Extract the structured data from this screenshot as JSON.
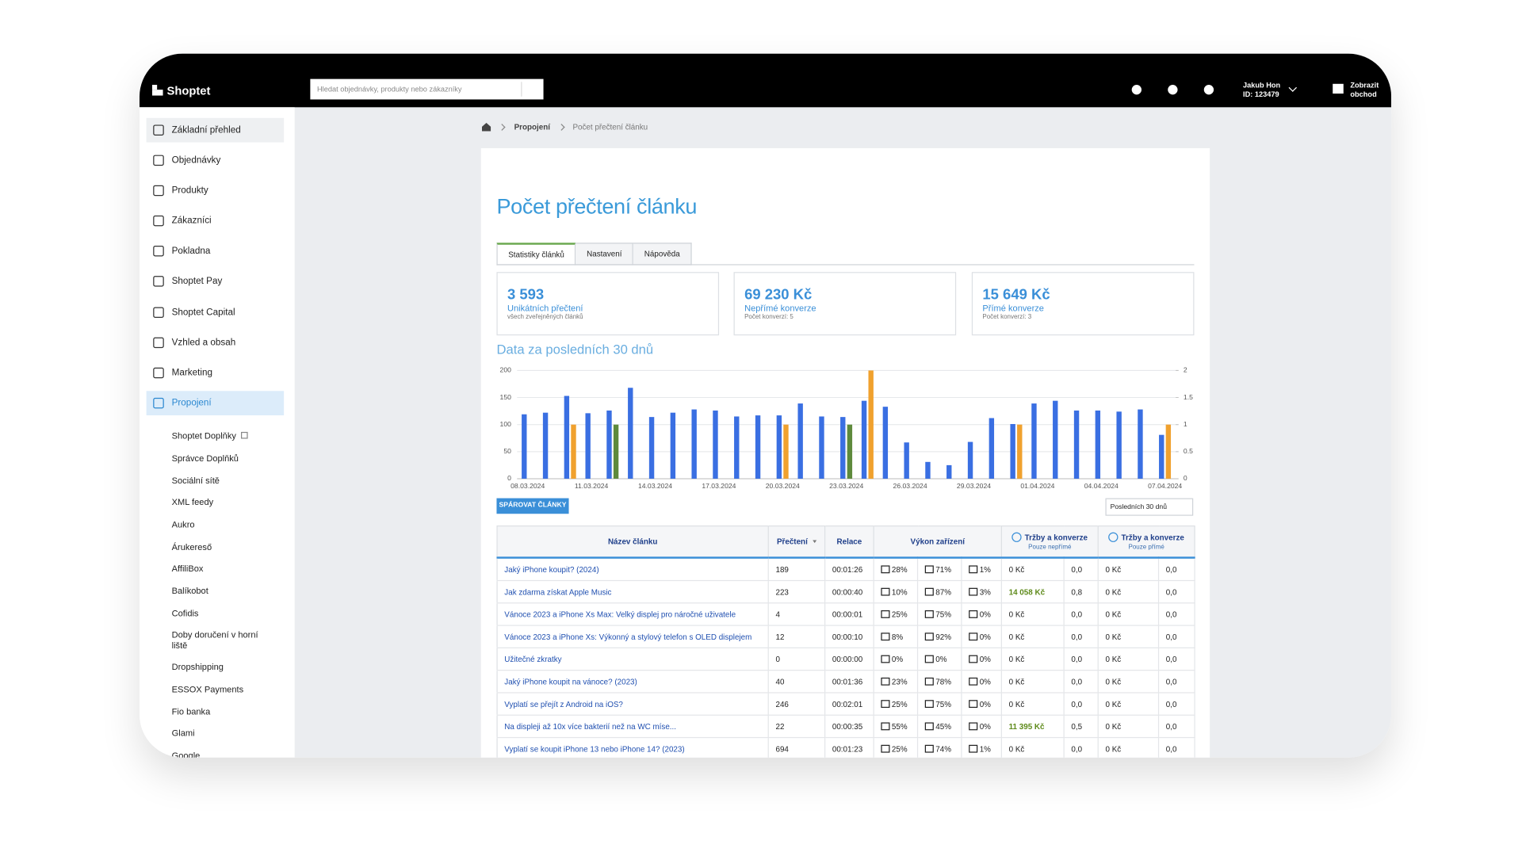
{
  "topbar": {
    "logo": "Shoptet",
    "search_placeholder": "Hledat objednávky, produkty nebo zákazníky",
    "user_name": "Jakub Hon",
    "user_id": "ID: 123479",
    "store_link": "Zobrazit obchod"
  },
  "sidebar": {
    "items": [
      "Základní přehled",
      "Objednávky",
      "Produkty",
      "Zákazníci",
      "Pokladna",
      "Shoptet Pay",
      "Shoptet Capital",
      "Vzhled a obsah",
      "Marketing",
      "Propojení"
    ],
    "subitems": [
      "Shoptet Doplňky",
      "Správce Doplňků",
      "Sociální sítě",
      "XML feedy",
      "Aukro",
      "Árukereső",
      "AffiliBox",
      "Balíkobot",
      "Cofidis",
      "Doby doručení v horní liště",
      "Dropshipping",
      "ESSOX Payments",
      "Fio banka",
      "Glami",
      "Google"
    ]
  },
  "breadcrumb": [
    "Propojení",
    "Počet přečtení článku"
  ],
  "page_title": "Počet přečtení článku",
  "tabs": [
    "Statistiky článků",
    "Nastavení",
    "Nápověda"
  ],
  "stats": [
    {
      "value": "3 593",
      "label": "Unikátních přečtení",
      "note": "všech zveřejněných článků"
    },
    {
      "value": "69 230 Kč",
      "label": "Nepřímé konverze",
      "note": "Počet konverzí: 5"
    },
    {
      "value": "15 649 Kč",
      "label": "Přímé konverze",
      "note": "Počet konverzí: 3"
    }
  ],
  "chart_data": {
    "type": "bar",
    "title": "Data za posledních 30 dnů",
    "categories": [
      "08.03.2024",
      null,
      null,
      "11.03.2024",
      null,
      null,
      "14.03.2024",
      null,
      null,
      "17.03.2024",
      null,
      null,
      "20.03.2024",
      null,
      null,
      "23.03.2024",
      null,
      null,
      "26.03.2024",
      null,
      null,
      "29.03.2024",
      null,
      null,
      "01.04.2024",
      null,
      null,
      "04.04.2024",
      null,
      null,
      "07.04.2024"
    ],
    "series": [
      {
        "color": "#3a6fe2",
        "values": [
          119,
          122,
          153,
          121,
          126,
          168,
          114,
          122,
          128,
          126,
          115,
          117,
          117,
          139,
          115,
          114,
          144,
          133,
          67,
          31,
          25,
          68,
          112,
          101,
          139,
          144,
          126,
          126,
          124,
          128,
          81
        ]
      },
      {
        "color": "#f0a12e",
        "axis": "y2",
        "values": [
          0,
          0,
          1,
          0,
          0,
          0,
          0,
          0,
          0,
          0,
          0,
          0,
          1,
          0,
          0,
          0,
          2,
          0,
          0,
          0,
          0,
          0,
          0,
          1,
          0,
          0,
          0,
          0,
          0,
          0,
          1
        ]
      },
      {
        "color": "#5e8a3c",
        "axis": "y2",
        "values": [
          0,
          0,
          0,
          0,
          1,
          0,
          0,
          0,
          0,
          0,
          0,
          0,
          0,
          0,
          0,
          1,
          0,
          0,
          0,
          0,
          0,
          0,
          0,
          0,
          0,
          0,
          0,
          0,
          0,
          0,
          0
        ]
      }
    ],
    "ylim": [
      0,
      200
    ],
    "yticks": [
      0,
      50,
      100,
      150,
      200
    ],
    "y2lim": [
      0,
      2
    ],
    "y2ticks": [
      0,
      0.5,
      1,
      1.5,
      2
    ],
    "grid": true
  },
  "pair_button": "SPÁROVAT ČLÁNKY",
  "period_select": "Posledních 30 dnů",
  "table": {
    "headers": [
      "Název článku",
      "Přečtení",
      "Relace",
      "Výkon zařízení",
      "Tržby a konverze",
      "Tržby a konverze"
    ],
    "header_notes": [
      "Pouze nepřímé",
      "Pouze přímé"
    ],
    "rows": [
      [
        "Jaký iPhone koupit? (2024)",
        "189",
        "00:01:26",
        "28%",
        "71%",
        "1%",
        "0 Kč",
        "0,0",
        "0 Kč",
        "0,0"
      ],
      [
        "Jak zdarma získat Apple Music",
        "223",
        "00:00:40",
        "10%",
        "87%",
        "3%",
        "14 058 Kč",
        "0,8",
        "0 Kč",
        "0,0"
      ],
      [
        "Vánoce 2023 a iPhone Xs Max: Velký displej pro náročné uživatele",
        "4",
        "00:00:01",
        "25%",
        "75%",
        "0%",
        "0 Kč",
        "0,0",
        "0 Kč",
        "0,0"
      ],
      [
        "Vánoce 2023 a iPhone Xs: Výkonný a stylový telefon s OLED displejem",
        "12",
        "00:00:10",
        "8%",
        "92%",
        "0%",
        "0 Kč",
        "0,0",
        "0 Kč",
        "0,0"
      ],
      [
        "Užitečné zkratky",
        "0",
        "00:00:00",
        "0%",
        "0%",
        "0%",
        "0 Kč",
        "0,0",
        "0 Kč",
        "0,0"
      ],
      [
        "Jaký iPhone koupit na vánoce? (2023)",
        "40",
        "00:01:36",
        "23%",
        "78%",
        "0%",
        "0 Kč",
        "0,0",
        "0 Kč",
        "0,0"
      ],
      [
        "Vyplatí se přejít z Android na iOS?",
        "246",
        "00:02:01",
        "25%",
        "75%",
        "0%",
        "0 Kč",
        "0,0",
        "0 Kč",
        "0,0"
      ],
      [
        "Na displeji až 10x více bakterií než na WC míse...",
        "22",
        "00:00:35",
        "55%",
        "45%",
        "0%",
        "11 395 Kč",
        "0,5",
        "0 Kč",
        "0,0"
      ],
      [
        "Vyplatí se koupit iPhone 13 nebo iPhone 14? (2023)",
        "694",
        "00:01:23",
        "25%",
        "74%",
        "1%",
        "0 Kč",
        "0,0",
        "0 Kč",
        "0,0"
      ]
    ]
  }
}
